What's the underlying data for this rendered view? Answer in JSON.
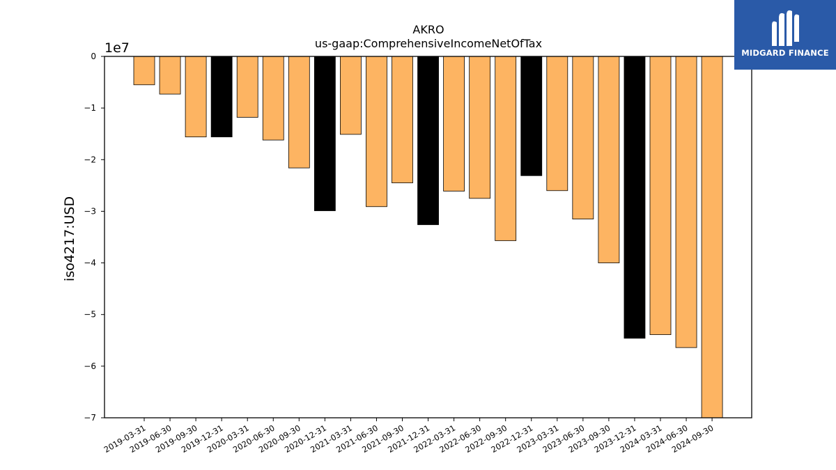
{
  "chart_data": {
    "type": "bar",
    "title": "AKRO",
    "subtitle": "us-gaap:ComprehensiveIncomeNetOfTax",
    "xlabel": "",
    "ylabel": "iso4217:USD",
    "y_multiplier_label": "1e7",
    "ylim": [
      -7.0,
      0
    ],
    "yticks": [
      0,
      -1,
      -2,
      -3,
      -4,
      -5,
      -6,
      -7
    ],
    "ytick_labels": [
      "0",
      "−1",
      "−2",
      "−3",
      "−4",
      "−5",
      "−6",
      "−7"
    ],
    "value_unit": "1e7 USD",
    "grid": false,
    "colors": {
      "quarter": "#fdb462",
      "annual": "#000000",
      "edge": "#000000"
    },
    "categories": [
      "2019-03-31",
      "2019-06-30",
      "2019-09-30",
      "2019-12-31",
      "2020-03-31",
      "2020-06-30",
      "2020-09-30",
      "2020-12-31",
      "2021-03-31",
      "2021-06-30",
      "2021-09-30",
      "2021-12-31",
      "2022-03-31",
      "2022-06-30",
      "2022-09-30",
      "2022-12-31",
      "2023-03-31",
      "2023-06-30",
      "2023-09-30",
      "2023-12-31",
      "2024-03-31",
      "2024-06-30",
      "2024-09-30"
    ],
    "values": [
      -0.55,
      -0.73,
      -1.56,
      -1.56,
      -1.18,
      -1.62,
      -2.16,
      -2.99,
      -1.51,
      -2.91,
      -2.45,
      -3.26,
      -2.61,
      -2.75,
      -3.57,
      -2.31,
      -2.6,
      -3.15,
      -4.0,
      -5.46,
      -5.39,
      -5.64,
      -7.04
    ],
    "bar_kind": [
      "quarter",
      "quarter",
      "quarter",
      "annual",
      "quarter",
      "quarter",
      "quarter",
      "annual",
      "quarter",
      "quarter",
      "quarter",
      "annual",
      "quarter",
      "quarter",
      "quarter",
      "annual",
      "quarter",
      "quarter",
      "quarter",
      "annual",
      "quarter",
      "quarter",
      "quarter"
    ]
  },
  "logo": {
    "text": "MIDGARD FINANCE"
  }
}
